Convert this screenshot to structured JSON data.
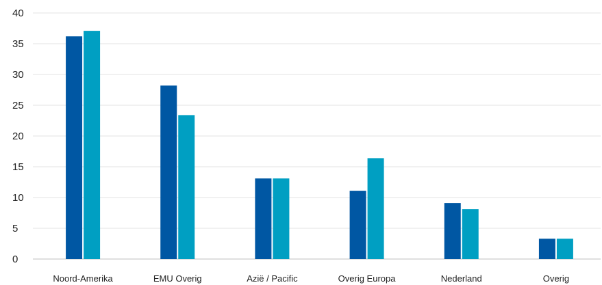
{
  "chart_data": {
    "type": "bar",
    "title": "",
    "xlabel": "",
    "ylabel": "",
    "ylim": [
      0,
      40
    ],
    "yticks": [
      0,
      5,
      10,
      15,
      20,
      25,
      30,
      35,
      40
    ],
    "grid": true,
    "legend": "none",
    "categories": [
      "Noord-Amerika",
      "EMU Overig",
      "Azië / Pacific",
      "Overig Europa",
      "Nederland",
      "Overig"
    ],
    "series": [
      {
        "color": "#0057a3",
        "values": [
          36.2,
          28.2,
          13.1,
          11.1,
          9.1,
          3.3
        ]
      },
      {
        "color": "#009fc2",
        "values": [
          37.1,
          23.4,
          13.1,
          16.4,
          8.1,
          3.3
        ]
      }
    ]
  }
}
